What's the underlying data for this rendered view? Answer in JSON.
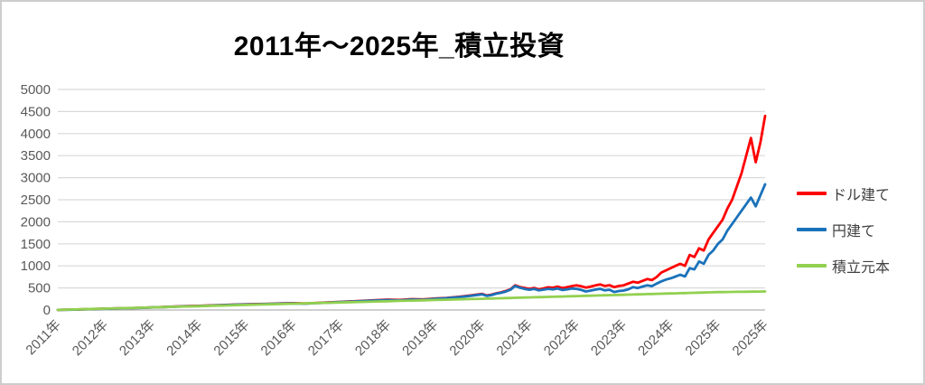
{
  "chart_data": {
    "type": "line",
    "title": "2011年～2025年_積立投資",
    "xlabel": "",
    "ylabel": "",
    "ylim": [
      0,
      5000
    ],
    "y_ticks": [
      0,
      500,
      1000,
      1500,
      2000,
      2500,
      3000,
      3500,
      4000,
      4500,
      5000
    ],
    "x_tick_labels": [
      "2011年",
      "2012年",
      "2013年",
      "2014年",
      "2015年",
      "2016年",
      "2017年",
      "2018年",
      "2019年",
      "2020年",
      "2021年",
      "2022年",
      "2023年",
      "2024年",
      "2025年",
      "2025年"
    ],
    "grid": true,
    "grid_color": "#d9d9d9",
    "axis_line_color": "#bfbfbf",
    "tick_label_color": "#595959",
    "legend_position": "right",
    "x": [
      2011.0,
      2011.25,
      2011.5,
      2011.75,
      2012.0,
      2012.25,
      2012.5,
      2012.75,
      2013.0,
      2013.25,
      2013.5,
      2013.75,
      2014.0,
      2014.25,
      2014.5,
      2014.75,
      2015.0,
      2015.25,
      2015.5,
      2015.75,
      2016.0,
      2016.25,
      2016.5,
      2016.75,
      2017.0,
      2017.25,
      2017.5,
      2017.75,
      2018.0,
      2018.25,
      2018.5,
      2018.75,
      2019.0,
      2019.25,
      2019.5,
      2019.75,
      2020.0,
      2020.1,
      2020.2,
      2020.3,
      2020.4,
      2020.5,
      2020.6,
      2020.7,
      2020.8,
      2020.9,
      2021.0,
      2021.1,
      2021.2,
      2021.3,
      2021.4,
      2021.5,
      2021.6,
      2021.7,
      2021.8,
      2021.9,
      2022.0,
      2022.1,
      2022.2,
      2022.3,
      2022.4,
      2022.5,
      2022.6,
      2022.7,
      2022.8,
      2022.9,
      2023.0,
      2023.1,
      2023.2,
      2023.3,
      2023.4,
      2023.5,
      2023.6,
      2023.7,
      2023.8,
      2023.9,
      2024.0,
      2024.1,
      2024.2,
      2024.3,
      2024.4,
      2024.5,
      2024.6,
      2024.7,
      2024.8,
      2024.9,
      2025.0,
      2025.05,
      2025.1,
      2025.15,
      2025.2,
      2025.25,
      2025.3,
      2025.35,
      2025.4,
      2025.45,
      2025.5
    ],
    "series": [
      {
        "key": "dollar",
        "name": "ドル建て",
        "color": "#ff0000",
        "values": [
          2,
          8,
          14,
          22,
          30,
          36,
          42,
          50,
          60,
          68,
          78,
          88,
          95,
          104,
          112,
          122,
          130,
          136,
          142,
          150,
          155,
          148,
          162,
          175,
          185,
          196,
          210,
          222,
          235,
          228,
          245,
          240,
          260,
          275,
          300,
          330,
          365,
          330,
          348,
          380,
          400,
          430,
          470,
          560,
          520,
          500,
          480,
          500,
          468,
          490,
          515,
          505,
          530,
          498,
          518,
          540,
          560,
          538,
          508,
          530,
          558,
          580,
          545,
          562,
          518,
          545,
          560,
          600,
          640,
          618,
          660,
          700,
          678,
          748,
          850,
          900,
          950,
          1000,
          1048,
          1000,
          1248,
          1200,
          1400,
          1348,
          1600,
          1750,
          1900,
          2050,
          2300,
          2500,
          2800,
          3100,
          3500,
          3900,
          3350,
          3800,
          4400
        ]
      },
      {
        "key": "yen",
        "name": "円建て",
        "color": "#1a72ba",
        "values": [
          2,
          7,
          13,
          20,
          28,
          34,
          40,
          47,
          58,
          65,
          75,
          85,
          90,
          100,
          108,
          118,
          125,
          131,
          137,
          145,
          150,
          143,
          156,
          168,
          180,
          190,
          204,
          215,
          225,
          218,
          235,
          230,
          255,
          268,
          290,
          320,
          355,
          320,
          338,
          370,
          390,
          418,
          458,
          545,
          505,
          478,
          460,
          478,
          445,
          462,
          480,
          468,
          485,
          452,
          468,
          485,
          480,
          455,
          420,
          440,
          462,
          480,
          445,
          458,
          408,
          430,
          440,
          470,
          518,
          498,
          530,
          560,
          542,
          598,
          650,
          690,
          720,
          758,
          800,
          760,
          948,
          920,
          1100,
          1048,
          1250,
          1350,
          1500,
          1600,
          1800,
          1950,
          2100,
          2250,
          2400,
          2550,
          2350,
          2600,
          2850
        ]
      },
      {
        "key": "principal",
        "name": "積立元本",
        "color": "#92d050",
        "values": [
          3,
          10,
          17,
          24,
          31,
          38,
          45,
          52,
          59,
          66,
          73,
          80,
          87,
          94,
          101,
          108,
          115,
          122,
          129,
          136,
          143,
          150,
          157,
          164,
          171,
          178,
          185,
          192,
          199,
          206,
          213,
          220,
          227,
          234,
          241,
          248,
          255,
          258,
          261,
          264,
          267,
          270,
          273,
          276,
          279,
          282,
          285,
          288,
          291,
          294,
          297,
          300,
          303,
          306,
          309,
          312,
          315,
          318,
          321,
          324,
          327,
          330,
          333,
          336,
          339,
          342,
          345,
          348,
          351,
          354,
          357,
          360,
          363,
          366,
          369,
          372,
          375,
          378,
          381,
          384,
          387,
          390,
          393,
          396,
          399,
          402,
          405,
          406,
          408,
          409,
          411,
          412,
          414,
          415,
          417,
          418,
          420
        ]
      }
    ]
  }
}
